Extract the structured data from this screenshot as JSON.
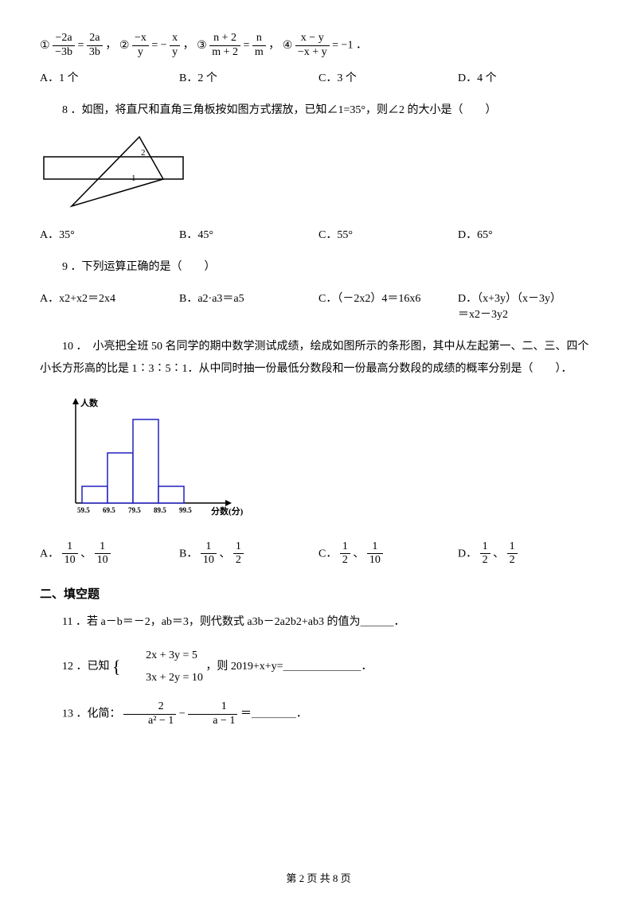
{
  "q7": {
    "eq1": {
      "circ": "①",
      "n1": "−2a",
      "d1": "−3b",
      "n2": "2a",
      "d2": "3b",
      "tail": "，"
    },
    "eq2": {
      "circ": "②",
      "n1": "−x",
      "d1": "y",
      "mid": "= −",
      "n2": "x",
      "d2": "y",
      "tail": "，"
    },
    "eq3": {
      "circ": "③",
      "n1": "n + 2",
      "d1": "m + 2",
      "n2": "n",
      "d2": "m",
      "tail": "，"
    },
    "eq4": {
      "circ": "④",
      "n1": "x − y",
      "d1": "−x + y",
      "rhs": "= −1",
      "tail": "．"
    },
    "opts": {
      "A": "A．1 个",
      "B": "B．2 个",
      "C": "C．3 个",
      "D": "D．4 个"
    }
  },
  "q8": {
    "text": "8 ．如图，将直尺和直角三角板按如图方式摆放，已知∠1=35°，则∠2 的大小是（　　）",
    "opts": {
      "A": "A．35°",
      "B": "B．45°",
      "C": "C．55°",
      "D": "D．65°"
    },
    "diagram": {
      "label1": "1",
      "label2": "2"
    }
  },
  "q9": {
    "text": "9 ．下列运算正确的是（　　）",
    "opts": {
      "A": "A．x2+x2＝2x4",
      "B": "B．a2·a3＝a5",
      "C": "C．（－2x2）4＝16x6",
      "D1": "D．（x+3y）（x－3y）",
      "D2": "＝x2－3y2"
    }
  },
  "q10": {
    "text": "10 ．　小亮把全班 50 名同学的期中数学测试成绩，绘成如图所示的条形图，其中从左起第一、二、三、四个小长方形高的比是 1∶3∶5∶1．从中同时抽一份最低分数段和一份最高分数段的成绩的概率分别是（　　）．",
    "chart": {
      "ylabel": "人数",
      "xlabel": "分数(分)",
      "ticks": [
        "59.5",
        "69.5",
        "79.5",
        "89.5",
        "99.5"
      ],
      "heights": [
        1,
        3,
        5,
        1
      ],
      "bar_color": "#ffffff",
      "border_color": "#2020c0",
      "axis_color": "#000000",
      "tick_font": 9
    },
    "opts": {
      "A": {
        "pre": "A．",
        "n1": "1",
        "d1": "10",
        "sep": "、",
        "n2": "1",
        "d2": "10"
      },
      "B": {
        "pre": "B．",
        "n1": "1",
        "d1": "10",
        "sep": "、",
        "n2": "1",
        "d2": "2"
      },
      "C": {
        "pre": "C．",
        "n1": "1",
        "d1": "2",
        "sep": "、",
        "n2": "1",
        "d2": "10"
      },
      "D": {
        "pre": "D．",
        "n1": "1",
        "d1": "2",
        "sep": "、",
        "n2": "1",
        "d2": "2"
      }
    }
  },
  "section2": "二、填空题",
  "q11": {
    "text": "11 ．若 a－b＝－2，ab＝3，则代数式 a3b－2a2b2+ab3 的值为＿＿＿．"
  },
  "q12": {
    "pre": "12 ．已知",
    "brace_top": "2x + 3y = 5",
    "brace_bot": "3x + 2y = 10",
    "post": "，则 2019+x+y=＿＿＿＿＿＿＿．"
  },
  "q13": {
    "pre": "13 ．化简：",
    "n1": "2",
    "d1": "a² − 1",
    "mid": "−",
    "n2": "1",
    "d2": "a − 1",
    "post": "＝＿＿＿＿．"
  },
  "footer": "第 2 页 共 8 页"
}
